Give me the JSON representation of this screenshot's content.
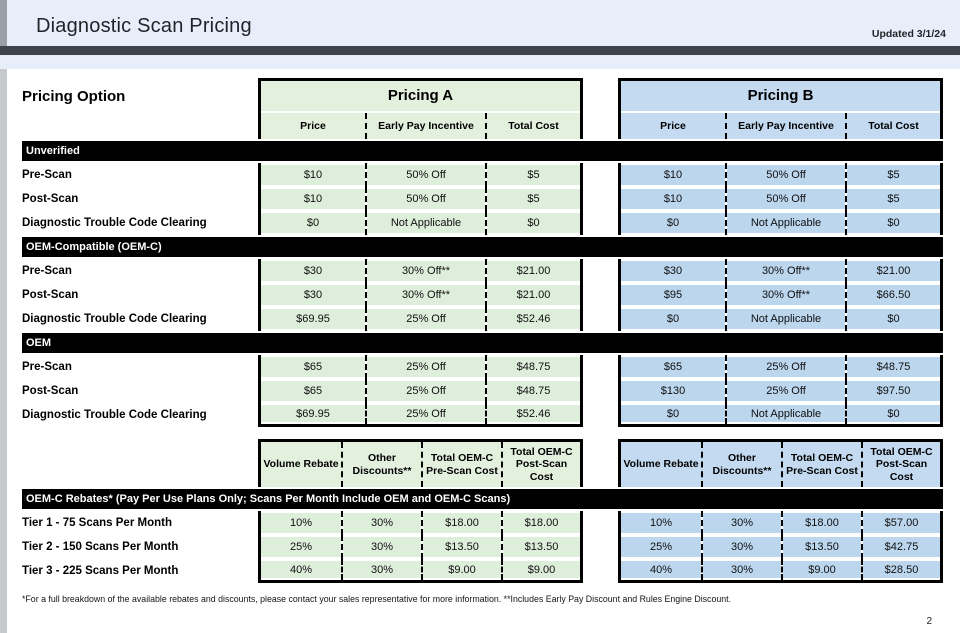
{
  "header": {
    "title": "Diagnostic Scan Pricing",
    "updated": "Updated 3/1/24"
  },
  "pricing_option_label": "Pricing Option",
  "pricing_tables": {
    "a": {
      "title": "Pricing A",
      "columns": [
        "Price",
        "Early Pay Incentive",
        "Total Cost"
      ]
    },
    "b": {
      "title": "Pricing B",
      "columns": [
        "Price",
        "Early Pay Incentive",
        "Total Cost"
      ]
    }
  },
  "sections": [
    {
      "name": "Unverified",
      "rows": [
        {
          "label": "Pre-Scan",
          "a": [
            "$10",
            "50% Off",
            "$5"
          ],
          "b": [
            "$10",
            "50% Off",
            "$5"
          ]
        },
        {
          "label": "Post-Scan",
          "a": [
            "$10",
            "50% Off",
            "$5"
          ],
          "b": [
            "$10",
            "50% Off",
            "$5"
          ]
        },
        {
          "label": "Diagnostic Trouble Code Clearing",
          "a": [
            "$0",
            "Not Applicable",
            "$0"
          ],
          "b": [
            "$0",
            "Not Applicable",
            "$0"
          ]
        }
      ]
    },
    {
      "name": "OEM-Compatible (OEM-C)",
      "rows": [
        {
          "label": "Pre-Scan",
          "a": [
            "$30",
            "30% Off**",
            "$21.00"
          ],
          "b": [
            "$30",
            "30% Off**",
            "$21.00"
          ]
        },
        {
          "label": "Post-Scan",
          "a": [
            "$30",
            "30% Off**",
            "$21.00"
          ],
          "b": [
            "$95",
            "30% Off**",
            "$66.50"
          ]
        },
        {
          "label": "Diagnostic Trouble Code Clearing",
          "a": [
            "$69.95",
            "25% Off",
            "$52.46"
          ],
          "b": [
            "$0",
            "Not Applicable",
            "$0"
          ]
        }
      ]
    },
    {
      "name": "OEM",
      "rows": [
        {
          "label": "Pre-Scan",
          "a": [
            "$65",
            "25% Off",
            "$48.75"
          ],
          "b": [
            "$65",
            "25% Off",
            "$48.75"
          ]
        },
        {
          "label": "Post-Scan",
          "a": [
            "$65",
            "25% Off",
            "$48.75"
          ],
          "b": [
            "$130",
            "25% Off",
            "$97.50"
          ]
        },
        {
          "label": "Diagnostic Trouble Code Clearing",
          "a": [
            "$69.95",
            "25% Off",
            "$52.46"
          ],
          "b": [
            "$0",
            "Not Applicable",
            "$0"
          ]
        }
      ]
    }
  ],
  "rebates": {
    "columns": [
      "Volume Rebate",
      "Other Discounts**",
      "Total OEM-C Pre-Scan Cost",
      "Total OEM-C Post-Scan Cost"
    ],
    "bar": "OEM-C Rebates* (Pay Per Use Plans Only; Scans Per Month Include OEM and OEM-C Scans)",
    "rows": [
      {
        "label": "Tier 1 - 75 Scans Per Month",
        "a": [
          "10%",
          "30%",
          "$18.00",
          "$18.00"
        ],
        "b": [
          "10%",
          "30%",
          "$18.00",
          "$57.00"
        ]
      },
      {
        "label": "Tier 2 - 150 Scans Per Month",
        "a": [
          "25%",
          "30%",
          "$13.50",
          "$13.50"
        ],
        "b": [
          "25%",
          "30%",
          "$13.50",
          "$42.75"
        ]
      },
      {
        "label": "Tier 3 - 225 Scans Per Month",
        "a": [
          "40%",
          "30%",
          "$9.00",
          "$9.00"
        ],
        "b": [
          "40%",
          "30%",
          "$9.00",
          "$28.50"
        ]
      }
    ]
  },
  "footnote": "*For a full breakdown of the available rebates and discounts, please contact your sales representative for more information.  **Includes Early Pay Discount and Rules Engine Discount.",
  "page_number": "2",
  "colors": {
    "pricing_a_header": "#e3f0dd",
    "pricing_a_cell": "#ddeeda",
    "pricing_b_header": "#c3daf1",
    "pricing_b_cell": "#bcd6ee",
    "section_bar": "#000000",
    "header_band": "#e8eef9",
    "divider_bar": "#3c434b"
  }
}
